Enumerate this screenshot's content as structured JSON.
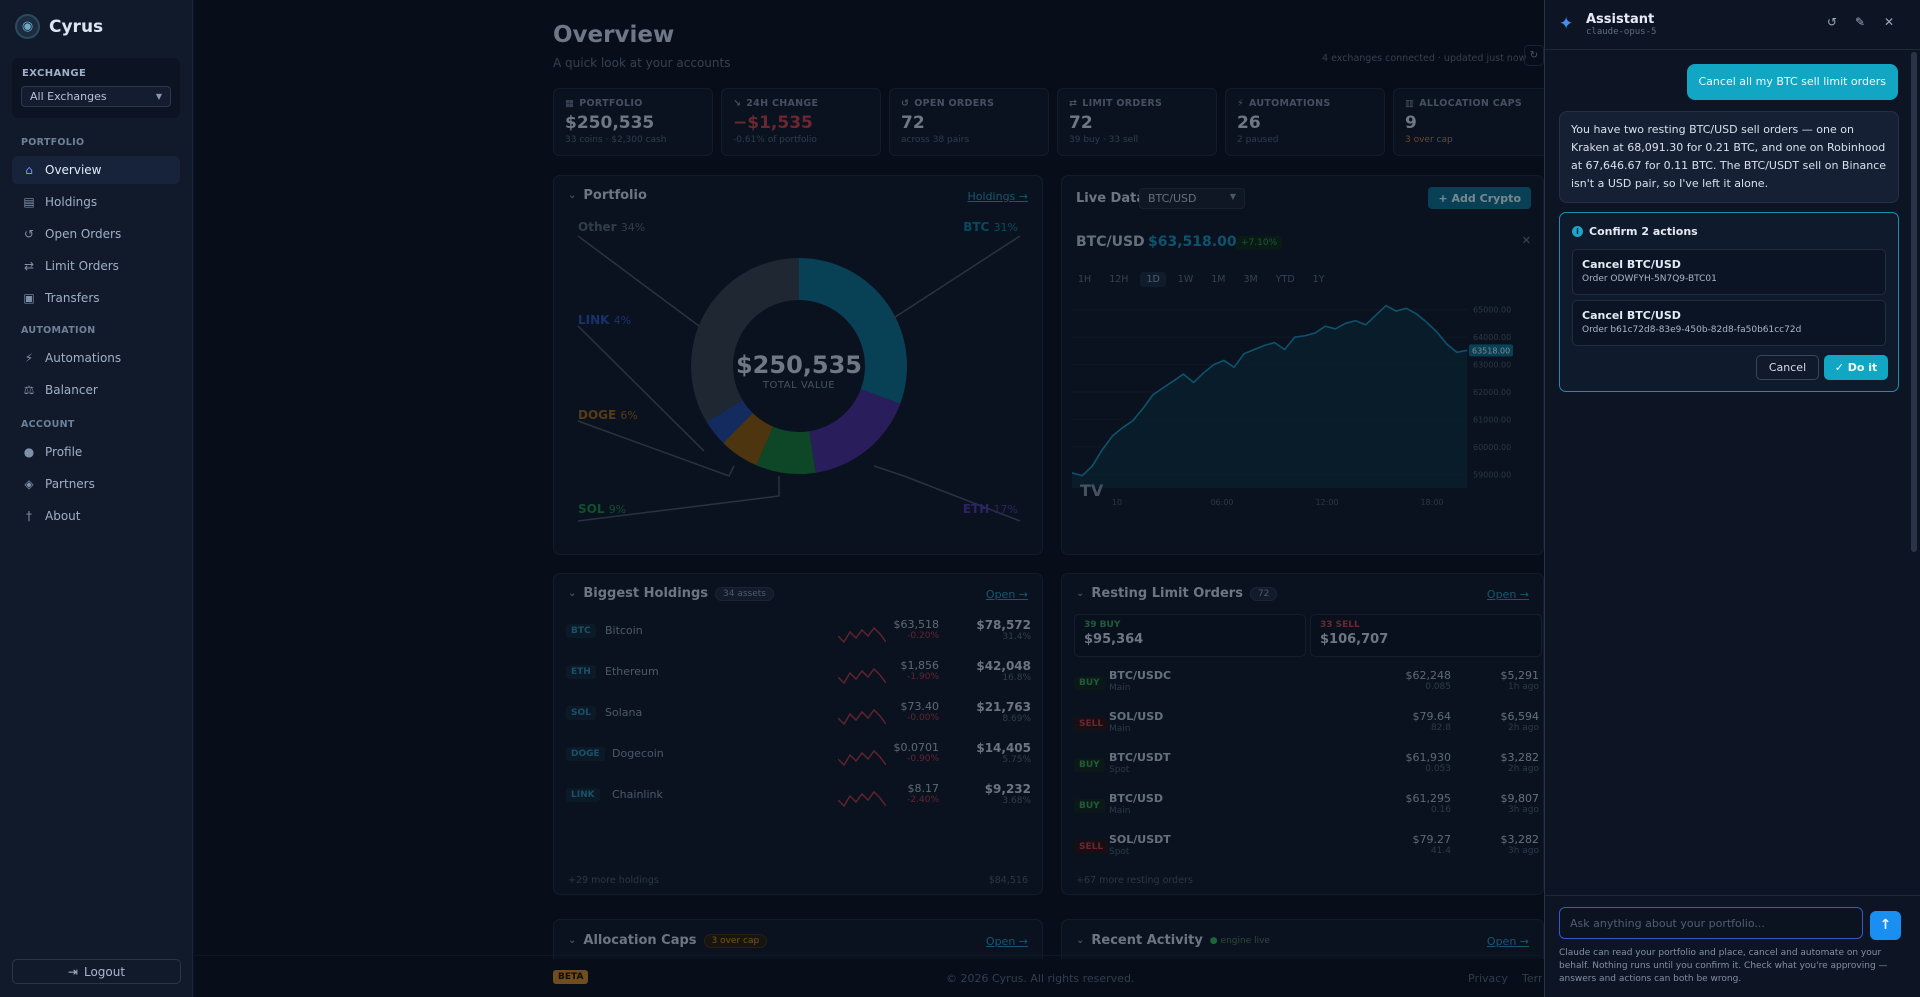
{
  "app": {
    "name": "Cyrus"
  },
  "sidebar": {
    "exchange_label": "EXCHANGE",
    "exchange_value": "All Exchanges",
    "sections": [
      "PORTFOLIO",
      "AUTOMATION",
      "ACCOUNT"
    ],
    "items": [
      {
        "label": "Overview",
        "icon": "home-icon"
      },
      {
        "label": "Holdings",
        "icon": "coins-icon"
      },
      {
        "label": "Open Orders",
        "icon": "history-icon"
      },
      {
        "label": "Limit Orders",
        "icon": "swap-icon"
      },
      {
        "label": "Transfers",
        "icon": "transfer-icon"
      },
      {
        "label": "Automations",
        "icon": "bolt-icon"
      },
      {
        "label": "Balancer",
        "icon": "scale-icon"
      },
      {
        "label": "Profile",
        "icon": "user-icon"
      },
      {
        "label": "Partners",
        "icon": "handshake-icon"
      },
      {
        "label": "About",
        "icon": "info-icon"
      }
    ],
    "logout": "Logout"
  },
  "header": {
    "title": "Overview",
    "subtitle": "A quick look at your accounts",
    "connection": "4 exchanges connected · updated just now"
  },
  "stats": [
    {
      "label": "PORTFOLIO",
      "value": "$250,535",
      "sub": "33 coins · $2,300 cash"
    },
    {
      "label": "24H CHANGE",
      "value": "−$1,535",
      "sub": "-0.61% of portfolio"
    },
    {
      "label": "OPEN ORDERS",
      "value": "72",
      "sub": "across 38 pairs"
    },
    {
      "label": "LIMIT ORDERS",
      "value": "72",
      "sub": "39 buy · 33 sell"
    },
    {
      "label": "AUTOMATIONS",
      "value": "26",
      "sub": "2 paused"
    },
    {
      "label": "ALLOCATION CAPS",
      "value": "9",
      "sub": "3 over cap"
    }
  ],
  "portfolio": {
    "title": "Portfolio",
    "link": "Holdings →",
    "total": "$250,535",
    "total_label": "TOTAL VALUE",
    "slices": [
      {
        "name": "BTC",
        "pct": "31%",
        "value": 31,
        "color": "#0e6f8e"
      },
      {
        "name": "ETH",
        "pct": "17%",
        "value": 17,
        "color": "#4a2f9a"
      },
      {
        "name": "SOL",
        "pct": "9%",
        "value": 9,
        "color": "#167a3a"
      },
      {
        "name": "DOGE",
        "pct": "6%",
        "value": 6,
        "color": "#8a5a10"
      },
      {
        "name": "LINK",
        "pct": "4%",
        "value": 4,
        "color": "#22489e"
      },
      {
        "name": "Other",
        "pct": "34%",
        "value": 34,
        "color": "#37404f"
      }
    ]
  },
  "live": {
    "title": "Live Data",
    "pair": "BTC/USD",
    "add": "Add Crypto",
    "price": "$63,518.00",
    "change": "+7.10%",
    "tabs": [
      "1H",
      "12H",
      "1D",
      "1W",
      "1M",
      "3M",
      "YTD",
      "1Y"
    ],
    "last_label": "63518.00",
    "y_ticks": [
      "65000.00",
      "64000.00",
      "63000.00",
      "62000.00",
      "61000.00",
      "60000.00",
      "59000.00"
    ],
    "x_ticks": [
      "10",
      "06:00",
      "12:00",
      "18:00"
    ]
  },
  "chart_data": {
    "type": "area",
    "title": "BTC/USD",
    "x": [
      0,
      1,
      2,
      3,
      4,
      5,
      6,
      7,
      8,
      9,
      10,
      11,
      12,
      13,
      14,
      15,
      16,
      17,
      18,
      19,
      20,
      21,
      22,
      23,
      24,
      25,
      26,
      27,
      28,
      29,
      30,
      31,
      32,
      33,
      34,
      35,
      36,
      37,
      38,
      39
    ],
    "values": [
      59050,
      58950,
      59300,
      59900,
      60400,
      60700,
      60950,
      61400,
      61900,
      62150,
      62400,
      62650,
      62350,
      62700,
      63000,
      63150,
      62900,
      63400,
      63550,
      63700,
      63800,
      63550,
      64000,
      64050,
      64150,
      64400,
      64300,
      64500,
      64600,
      64450,
      64800,
      65150,
      64950,
      65050,
      64850,
      64550,
      64200,
      63750,
      63450,
      63518
    ],
    "ylim": [
      58500,
      65500
    ],
    "xlabel": "",
    "ylabel": ""
  },
  "holdings": {
    "title": "Biggest Holdings",
    "count": "34 assets",
    "link": "Open →",
    "more": "+29 more holdings",
    "more_value": "$84,516",
    "rows": [
      {
        "ticker": "BTC",
        "name": "Bitcoin",
        "price": "$63,518",
        "change": "-0.20%",
        "value": "$78,572",
        "pct": "31.4%"
      },
      {
        "ticker": "ETH",
        "name": "Ethereum",
        "price": "$1,856",
        "change": "-1.90%",
        "value": "$42,048",
        "pct": "16.8%"
      },
      {
        "ticker": "SOL",
        "name": "Solana",
        "price": "$73.40",
        "change": "-0.00%",
        "value": "$21,763",
        "pct": "8.69%"
      },
      {
        "ticker": "DOGE",
        "name": "Dogecoin",
        "price": "$0.0701",
        "change": "-0.90%",
        "value": "$14,405",
        "pct": "5.75%"
      },
      {
        "ticker": "LINK",
        "name": "Chainlink",
        "price": "$8.17",
        "change": "-2.40%",
        "value": "$9,232",
        "pct": "3.68%"
      }
    ]
  },
  "limit_orders": {
    "title": "Resting Limit Orders",
    "count": "72",
    "link": "Open →",
    "buy_label": "39 BUY",
    "buy_value": "$95,364",
    "sell_label": "33 SELL",
    "sell_value": "$106,707",
    "more": "+67 more resting orders",
    "rows": [
      {
        "side": "BUY",
        "pair": "BTC/USDC",
        "ex": "Main",
        "price": "$62,248",
        "qty": "0.085",
        "value": "$5,291",
        "age": "1h ago"
      },
      {
        "side": "SELL",
        "pair": "SOL/USD",
        "ex": "Main",
        "price": "$79.64",
        "qty": "82.8",
        "value": "$6,594",
        "age": "2h ago"
      },
      {
        "side": "BUY",
        "pair": "BTC/USDT",
        "ex": "Spot",
        "price": "$61,930",
        "qty": "0.053",
        "value": "$3,282",
        "age": "2h ago"
      },
      {
        "side": "BUY",
        "pair": "BTC/USD",
        "ex": "Main",
        "price": "$61,295",
        "qty": "0.16",
        "value": "$9,807",
        "age": "3h ago"
      },
      {
        "side": "SELL",
        "pair": "SOL/USDT",
        "ex": "Spot",
        "price": "$79.27",
        "qty": "41.4",
        "value": "$3,282",
        "age": "3h ago"
      }
    ]
  },
  "caps": {
    "title": "Allocation Caps",
    "badge": "3 over cap",
    "link": "Open →"
  },
  "activity": {
    "title": "Recent Activity",
    "badge": "engine live",
    "link": "Open →"
  },
  "footer": {
    "beta": "BETA",
    "copyright": "© 2026 Cyrus. All rights reserved.",
    "privacy": "Privacy",
    "terms": "Terms"
  },
  "assistant": {
    "title": "Assistant",
    "model": "claude-opus-5",
    "user_msg": "Cancel all my BTC sell limit orders",
    "bot_msg": "You have two resting BTC/USD sell orders — one on Kraken at 68,091.30 for 0.21 BTC, and one on Robinhood at 67,646.67 for 0.11 BTC. The BTC/USDT sell on Binance isn't a USD pair, so I've left it alone.",
    "confirm_title": "Confirm 2 actions",
    "actions": [
      {
        "name": "Cancel BTC/USD",
        "order": "Order ODWFYH-5N7Q9-BTC01"
      },
      {
        "name": "Cancel BTC/USD",
        "order": "Order b61c72d8-83e9-450b-82d8-fa50b61cc72d"
      }
    ],
    "cancel": "Cancel",
    "do": "Do it",
    "placeholder": "Ask anything about your portfolio...",
    "disclaimer": "Claude can read your portfolio and place, cancel and automate on your behalf. Nothing runs until you confirm it. Check what you're approving — answers and actions can both be wrong."
  }
}
